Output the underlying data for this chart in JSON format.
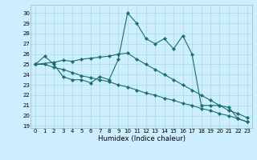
{
  "title": "",
  "xlabel": "Humidex (Indice chaleur)",
  "bg_color": "#cceeff",
  "grid_color": "#aaddcc",
  "line_color": "#1a6e6e",
  "xlim": [
    -0.5,
    23.5
  ],
  "ylim": [
    18.8,
    30.8
  ],
  "yticks": [
    19,
    20,
    21,
    22,
    23,
    24,
    25,
    26,
    27,
    28,
    29,
    30
  ],
  "xticks": [
    0,
    1,
    2,
    3,
    4,
    5,
    6,
    7,
    8,
    9,
    10,
    11,
    12,
    13,
    14,
    15,
    16,
    17,
    18,
    19,
    20,
    21,
    22,
    23
  ],
  "series1_x": [
    0,
    1,
    2,
    3,
    4,
    5,
    6,
    7,
    8,
    9,
    10,
    11,
    12,
    13,
    14,
    15,
    16,
    17,
    18,
    19,
    20,
    21,
    22,
    23
  ],
  "series1_y": [
    25.0,
    25.8,
    25.0,
    23.8,
    23.5,
    23.5,
    23.2,
    23.8,
    23.5,
    25.5,
    30.0,
    29.0,
    27.5,
    27.0,
    27.5,
    26.5,
    27.8,
    26.0,
    21.0,
    21.0,
    21.0,
    20.8,
    19.7,
    19.4
  ],
  "series2_x": [
    0,
    2,
    3,
    4,
    5,
    6,
    7,
    8,
    9,
    10,
    11,
    12,
    13,
    14,
    15,
    16,
    17,
    18,
    19,
    20,
    21,
    22,
    23
  ],
  "series2_y": [
    25.0,
    25.2,
    25.4,
    25.3,
    25.5,
    25.6,
    25.7,
    25.8,
    26.0,
    26.1,
    25.5,
    25.0,
    24.5,
    24.0,
    23.5,
    23.0,
    22.5,
    22.0,
    21.5,
    21.0,
    20.5,
    20.2,
    19.8
  ],
  "series3_x": [
    0,
    1,
    2,
    3,
    4,
    5,
    6,
    7,
    8,
    9,
    10,
    11,
    12,
    13,
    14,
    15,
    16,
    17,
    18,
    19,
    20,
    21,
    22,
    23
  ],
  "series3_y": [
    25.0,
    25.0,
    24.7,
    24.5,
    24.2,
    23.9,
    23.7,
    23.5,
    23.3,
    23.0,
    22.8,
    22.5,
    22.2,
    22.0,
    21.7,
    21.5,
    21.2,
    21.0,
    20.7,
    20.5,
    20.2,
    20.0,
    19.7,
    19.4
  ],
  "marker_size": 2.2,
  "lw": 0.8,
  "tick_fontsize": 5.0,
  "xlabel_fontsize": 6.2
}
